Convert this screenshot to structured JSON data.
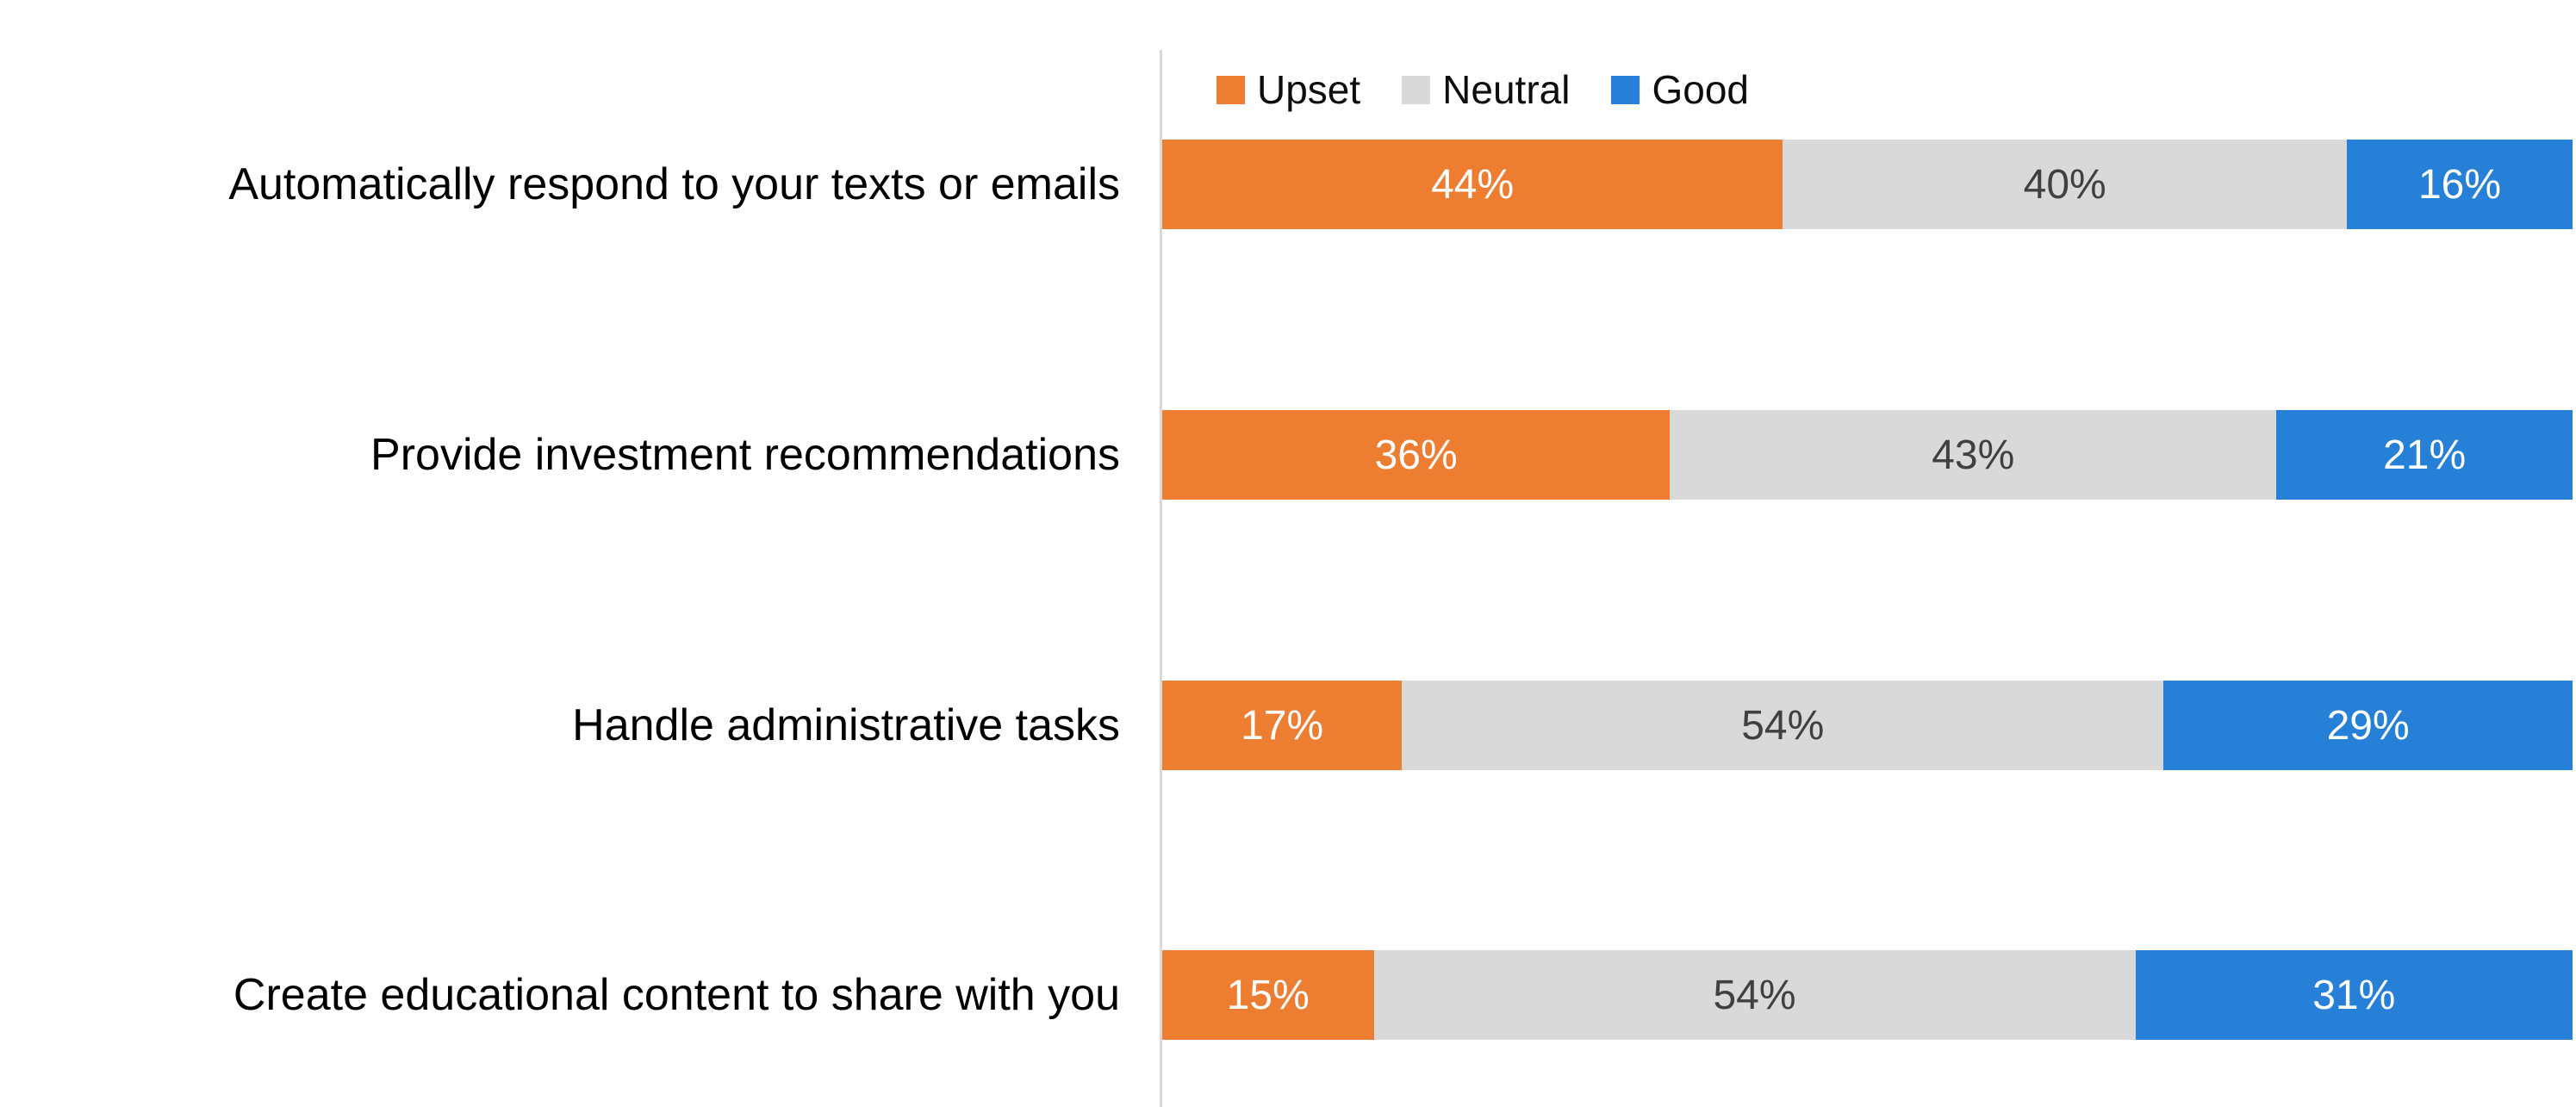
{
  "chart_data": {
    "type": "bar",
    "orientation": "horizontal",
    "stacked": true,
    "title": "",
    "xlabel": "",
    "ylabel": "",
    "xlim": [
      0,
      100
    ],
    "grid": false,
    "legend_position": "top",
    "value_suffix": "%",
    "categories": [
      "Automatically respond to your texts or emails",
      "Provide investment recommendations",
      "Handle administrative tasks",
      "Create educational content to share with you"
    ],
    "series": [
      {
        "name": "Upset",
        "color": "#ED7D31",
        "value_label_color": "#FFFFFF",
        "values": [
          44,
          36,
          17,
          15
        ]
      },
      {
        "name": "Neutral",
        "color": "#D9D9D9",
        "value_label_color": "#404040",
        "values": [
          40,
          43,
          54,
          54
        ]
      },
      {
        "name": "Good",
        "color": "#2680D8",
        "value_label_color": "#FFFFFF",
        "values": [
          16,
          21,
          29,
          31
        ]
      }
    ]
  },
  "colors": {
    "background": "#FFFFFF",
    "axis_line": "#D9D9D9",
    "category_label": "#000000",
    "legend_text": "#0D0D0D"
  }
}
